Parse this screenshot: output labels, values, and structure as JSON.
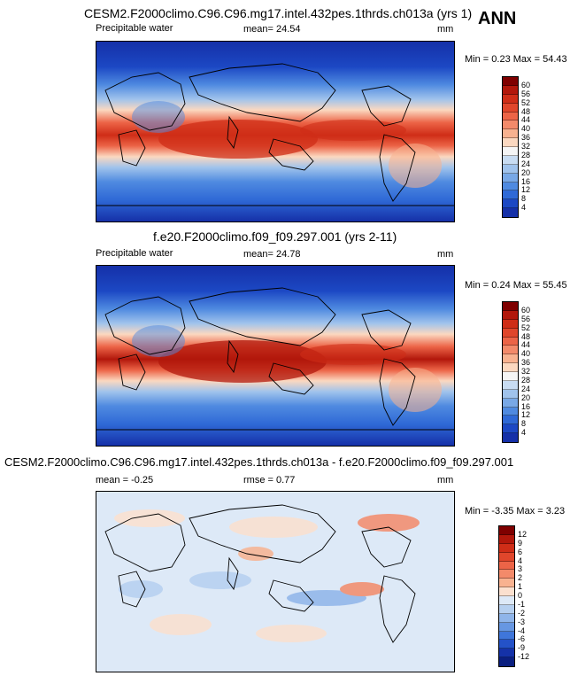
{
  "season_label": "ANN",
  "chart_data": [
    {
      "type": "heatmap",
      "title": "CESM2.F2000climo.C96.C96.mg17.intel.432pes.1thrds.ch013a (yrs 1)",
      "variable": "Precipitable water",
      "mean_label": "mean=",
      "mean": "24.54",
      "units": "mm",
      "min_label": "Min =",
      "min": "0.23",
      "max_label": "Max =",
      "max": "54.43",
      "colorbar_levels": [
        "60",
        "56",
        "52",
        "48",
        "44",
        "40",
        "36",
        "32",
        "28",
        "24",
        "20",
        "16",
        "12",
        "8",
        "4"
      ],
      "colorbar_colors": [
        "#7f0000",
        "#b2170b",
        "#cf2d17",
        "#e0462b",
        "#ec6447",
        "#f38a6a",
        "#f8b290",
        "#fbd8c0",
        "#f5f5f5",
        "#c8dcf2",
        "#a0c3ec",
        "#78a8e6",
        "#4f8ae0",
        "#2f69d6",
        "#1c48c4",
        "#1530a8"
      ]
    },
    {
      "type": "heatmap",
      "title": "f.e20.F2000climo.f09_f09.297.001 (yrs 2-11)",
      "variable": "Precipitable water",
      "mean_label": "mean=",
      "mean": "24.78",
      "units": "mm",
      "min_label": "Min =",
      "min": "0.24",
      "max_label": "Max =",
      "max": "55.45",
      "colorbar_levels": [
        "60",
        "56",
        "52",
        "48",
        "44",
        "40",
        "36",
        "32",
        "28",
        "24",
        "20",
        "16",
        "12",
        "8",
        "4"
      ],
      "colorbar_colors": [
        "#7f0000",
        "#b2170b",
        "#cf2d17",
        "#e0462b",
        "#ec6447",
        "#f38a6a",
        "#f8b290",
        "#fbd8c0",
        "#f5f5f5",
        "#c8dcf2",
        "#a0c3ec",
        "#78a8e6",
        "#4f8ae0",
        "#2f69d6",
        "#1c48c4",
        "#1530a8"
      ]
    },
    {
      "type": "heatmap",
      "title": "CESM2.F2000climo.C96.C96.mg17.intel.432pes.1thrds.ch013a - f.e20.F2000climo.f09_f09.297.001",
      "mean_label": "mean =",
      "mean": "-0.25",
      "rmse_label": "rmse =",
      "rmse": "0.77",
      "units": "mm",
      "min_label": "Min =",
      "min": "-3.35",
      "max_label": "Max =",
      "max": "3.23",
      "colorbar_levels": [
        "12",
        "9",
        "6",
        "4",
        "3",
        "2",
        "1",
        "0",
        "-1",
        "-2",
        "-3",
        "-4",
        "-6",
        "-9",
        "-12"
      ],
      "colorbar_colors": [
        "#7f0000",
        "#b2170b",
        "#cf2d17",
        "#e0462b",
        "#ec6447",
        "#f38a6a",
        "#f8b290",
        "#fbe0cf",
        "#dde9f7",
        "#b6d0f0",
        "#8fb5ea",
        "#6797e2",
        "#3f76da",
        "#2452c8",
        "#1532a8",
        "#0b1f80"
      ]
    }
  ]
}
